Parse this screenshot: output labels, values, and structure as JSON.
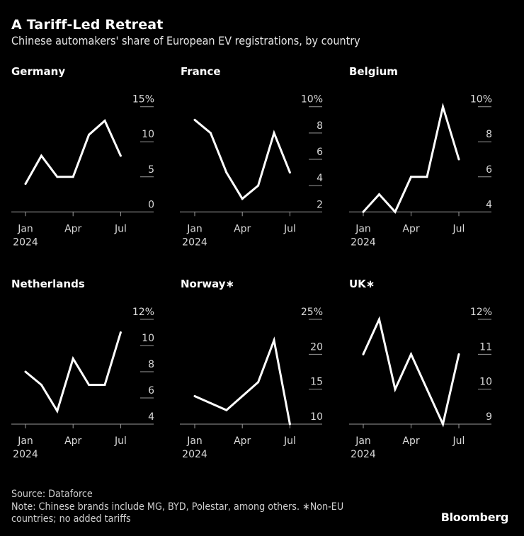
{
  "header": {
    "title": "A Tariff-Led Retreat",
    "subtitle": "Chinese automakers' share of European EV registrations, by country"
  },
  "footer": {
    "source": "Source: Dataforce",
    "note_line1": "Note: Chinese brands include MG, BYD, Polestar, among others. ∗Non-EU",
    "note_line2": "countries; no added tariffs",
    "brand": "Bloomberg"
  },
  "colors": {
    "background": "#000000",
    "line": "#ffffff",
    "axis": "#9a9a9a",
    "tick_text": "#d9d9d9"
  },
  "chart_data": [
    {
      "type": "line",
      "title": "Germany",
      "x": [
        "Jan",
        "Feb",
        "Mar",
        "Apr",
        "May",
        "Jun",
        "Jul"
      ],
      "x_tick_labels": [
        "Jan",
        "Apr",
        "Jul"
      ],
      "x_sub_label": "2024",
      "values": [
        4,
        8,
        5,
        5,
        11,
        13,
        8
      ],
      "yticks": [
        "0",
        "5",
        "10",
        "15%"
      ],
      "ytick_values": [
        0,
        5,
        10,
        15
      ],
      "ylim": [
        0,
        15
      ],
      "ylabel": "",
      "xlabel": "",
      "grid": false
    },
    {
      "type": "line",
      "title": "France",
      "x": [
        "Jan",
        "Feb",
        "Mar",
        "Apr",
        "May",
        "Jun",
        "Jul"
      ],
      "x_tick_labels": [
        "Jan",
        "Apr",
        "Jul"
      ],
      "x_sub_label": "2024",
      "values": [
        9,
        8,
        5,
        3,
        4,
        8,
        5
      ],
      "yticks": [
        "2",
        "4",
        "6",
        "8",
        "10%"
      ],
      "ytick_values": [
        2,
        4,
        6,
        8,
        10
      ],
      "ylim": [
        2,
        10
      ],
      "ylabel": "",
      "xlabel": "",
      "grid": false
    },
    {
      "type": "line",
      "title": "Belgium",
      "x": [
        "Jan",
        "Feb",
        "Mar",
        "Apr",
        "May",
        "Jun",
        "Jul"
      ],
      "x_tick_labels": [
        "Jan",
        "Apr",
        "Jul"
      ],
      "x_sub_label": "2024",
      "values": [
        4,
        5,
        4,
        6,
        6,
        10,
        7
      ],
      "yticks": [
        "4",
        "6",
        "8",
        "10%"
      ],
      "ytick_values": [
        4,
        6,
        8,
        10
      ],
      "ylim": [
        4,
        10
      ],
      "ylabel": "",
      "xlabel": "",
      "grid": false
    },
    {
      "type": "line",
      "title": "Netherlands",
      "x": [
        "Jan",
        "Feb",
        "Mar",
        "Apr",
        "May",
        "Jun",
        "Jul"
      ],
      "x_tick_labels": [
        "Jan",
        "Apr",
        "Jul"
      ],
      "x_sub_label": "2024",
      "values": [
        8,
        7,
        5,
        9,
        7,
        7,
        11
      ],
      "yticks": [
        "4",
        "6",
        "8",
        "10",
        "12%"
      ],
      "ytick_values": [
        4,
        6,
        8,
        10,
        12
      ],
      "ylim": [
        4,
        12
      ],
      "ylabel": "",
      "xlabel": "",
      "grid": false
    },
    {
      "type": "line",
      "title": "Norway∗",
      "x": [
        "Jan",
        "Feb",
        "Mar",
        "Apr",
        "May",
        "Jun",
        "Jul"
      ],
      "x_tick_labels": [
        "Jan",
        "Apr",
        "Jul"
      ],
      "x_sub_label": "2024",
      "values": [
        14,
        13,
        12,
        14,
        16,
        22,
        10
      ],
      "yticks": [
        "10",
        "15",
        "20",
        "25%"
      ],
      "ytick_values": [
        10,
        15,
        20,
        25
      ],
      "ylim": [
        10,
        25
      ],
      "ylabel": "",
      "xlabel": "",
      "grid": false
    },
    {
      "type": "line",
      "title": "UK∗",
      "x": [
        "Jan",
        "Feb",
        "Mar",
        "Apr",
        "May",
        "Jun",
        "Jul"
      ],
      "x_tick_labels": [
        "Jan",
        "Apr",
        "Jul"
      ],
      "x_sub_label": "2024",
      "values": [
        11,
        12,
        10,
        11,
        10,
        9,
        11
      ],
      "yticks": [
        "9",
        "10",
        "11",
        "12%"
      ],
      "ytick_values": [
        9,
        10,
        11,
        12
      ],
      "ylim": [
        9,
        12
      ],
      "ylabel": "",
      "xlabel": "",
      "grid": false
    }
  ]
}
